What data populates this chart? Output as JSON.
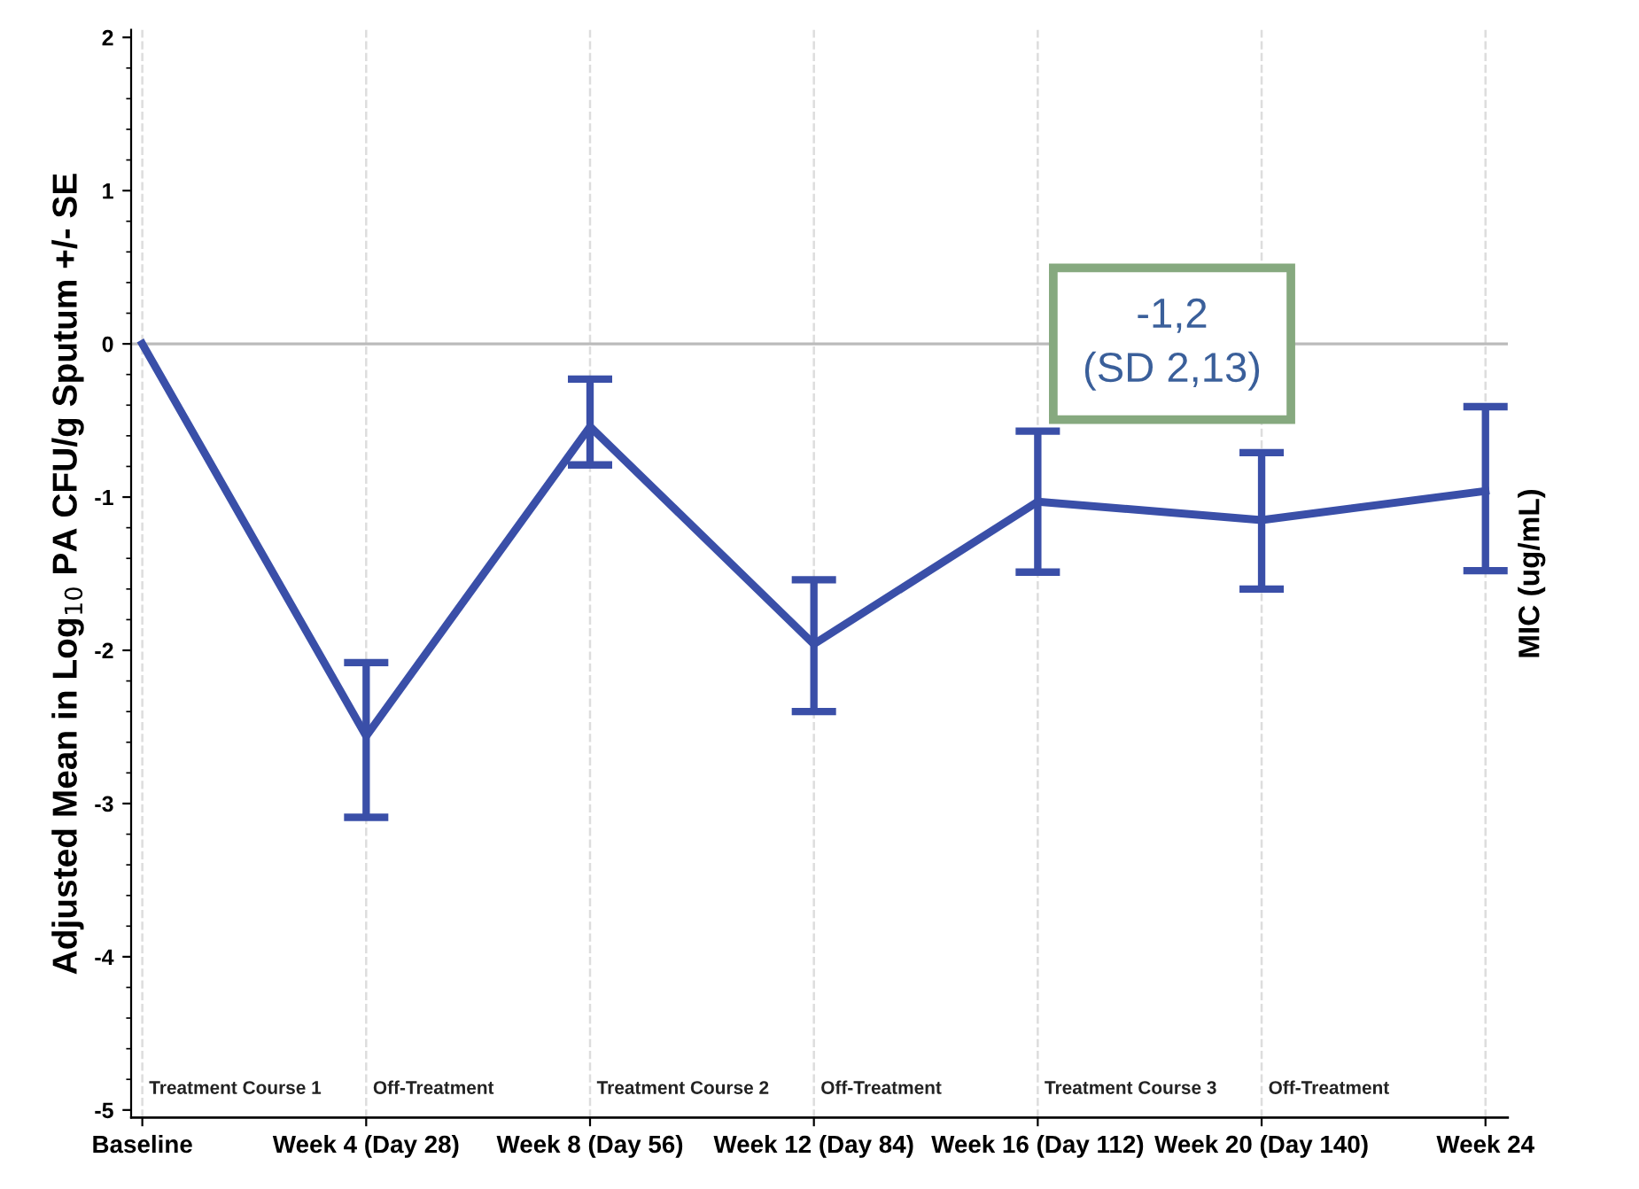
{
  "chart_data": {
    "type": "line",
    "ylabel": "Adjusted Mean in Log$_{10}$ PA CFU/g Sputum +/- SE",
    "y2label": "MIC (ug/mL)",
    "categories": [
      "Baseline",
      "Week 4 (Day 28)",
      "Week 8 (Day 56)",
      "Week 12 (Day 84)",
      "Week 16 (Day 112)",
      "Week 20 (Day 140)",
      "Week 24"
    ],
    "series": [
      {
        "color": "#3a4fa8",
        "values": [
          0,
          -2.56,
          -0.54,
          -1.96,
          -1.03,
          -1.15,
          -0.96
        ],
        "errors": [
          null,
          [
            -3.09,
            -2.08
          ],
          [
            -0.79,
            -0.23
          ],
          [
            -2.4,
            -1.54
          ],
          [
            -1.49,
            -0.57
          ],
          [
            -1.6,
            -0.71
          ],
          [
            -1.48,
            -0.41
          ]
        ]
      }
    ],
    "ylim": [
      -5.05,
      2.05
    ],
    "yticks": [
      -5,
      -4,
      -3,
      -2,
      -1,
      0,
      1,
      2
    ],
    "grid": "x",
    "marker": "none",
    "line_style": "solid",
    "ref_lines": [
      {
        "axis": "y",
        "value": 0,
        "color": "#bbbbbb"
      }
    ],
    "annotations": [
      "Treatment Course 1",
      "Off-Treatment",
      "Treatment Course 2",
      "Off-Treatment",
      "Treatment Course 3",
      "Off-Treatment",
      "-1,2\n(SD 2,13)"
    ]
  }
}
